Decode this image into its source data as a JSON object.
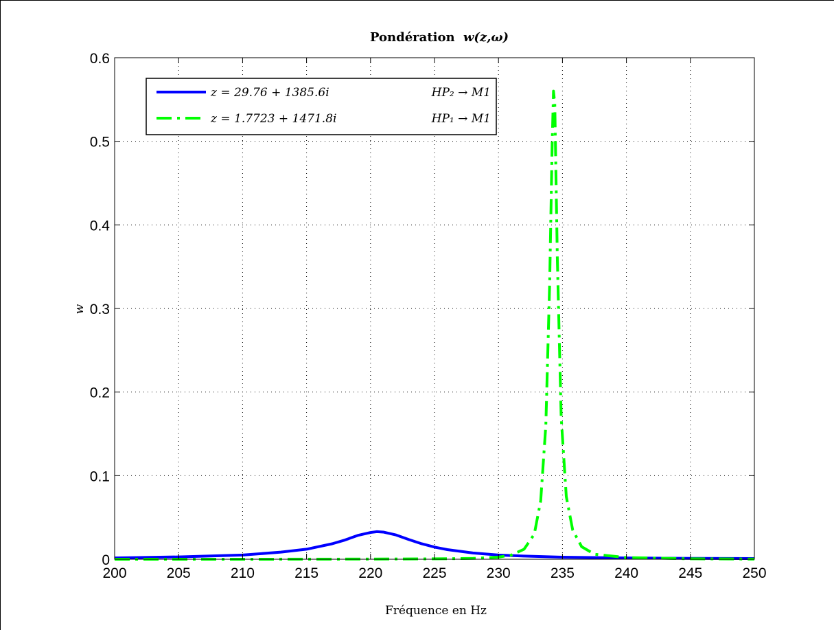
{
  "chart_data": {
    "type": "line",
    "title": {
      "bold": "Pondération",
      "math": "w(z,ω)"
    },
    "xlabel": "Fréquence en Hz",
    "ylabel": "w",
    "xlim": [
      200,
      250
    ],
    "ylim": [
      0,
      0.6
    ],
    "xticks": [
      200,
      205,
      210,
      215,
      220,
      225,
      230,
      235,
      240,
      245,
      250
    ],
    "yticks": [
      0,
      0.1,
      0.2,
      0.3,
      0.4,
      0.5,
      0.6
    ],
    "xtick_labels": [
      "200",
      "205",
      "210",
      "215",
      "220",
      "225",
      "230",
      "235",
      "240",
      "245",
      "250"
    ],
    "ytick_labels": [
      "0",
      "0.1",
      "0.2",
      "0.3",
      "0.4",
      "0.5",
      "0.6"
    ],
    "grid": true,
    "legend_position": "top-left",
    "series": [
      {
        "name": "z = 29.76 + 1385.6i",
        "path": "HP₂ → M1",
        "color": "#0000ff",
        "style": "solid",
        "x": [
          200,
          205,
          210,
          213,
          215,
          217,
          218,
          219,
          220,
          220.5,
          221,
          222,
          223,
          224,
          225,
          226,
          228,
          230,
          232,
          235,
          240,
          245,
          250
        ],
        "y": [
          0.0015,
          0.0028,
          0.005,
          0.0085,
          0.012,
          0.0185,
          0.023,
          0.0285,
          0.032,
          0.033,
          0.0325,
          0.029,
          0.0235,
          0.0185,
          0.0145,
          0.0115,
          0.0075,
          0.005,
          0.0038,
          0.0025,
          0.0015,
          0.001,
          0.0008
        ]
      },
      {
        "name": "z = 1.7723 + 1471.8i",
        "path": "HP₁ → M1",
        "color": "#00ff00",
        "style": "dashdot",
        "x": [
          200,
          210,
          220,
          225,
          228,
          230,
          231,
          232,
          232.8,
          233.3,
          233.7,
          234.0,
          234.2,
          234.3,
          234.4,
          234.6,
          234.9,
          235.3,
          235.8,
          236.5,
          237.5,
          240,
          245,
          250
        ],
        "y": [
          0,
          0,
          0.0002,
          0.0005,
          0.001,
          0.0025,
          0.005,
          0.012,
          0.03,
          0.07,
          0.16,
          0.33,
          0.5,
          0.56,
          0.545,
          0.36,
          0.17,
          0.075,
          0.035,
          0.015,
          0.006,
          0.002,
          0.0005,
          0.0002
        ]
      }
    ]
  },
  "colors": {
    "axes": "#000000",
    "grid": "#000000",
    "background": "#ffffff"
  }
}
